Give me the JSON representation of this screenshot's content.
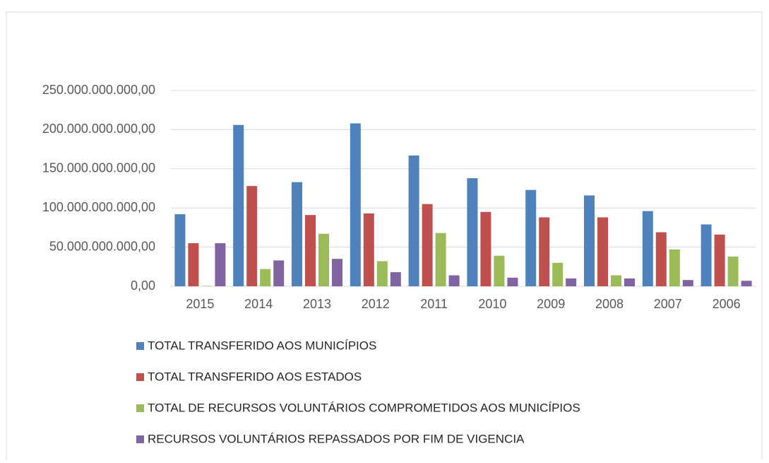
{
  "chart_data": {
    "type": "bar",
    "categories": [
      "2015",
      "2014",
      "2013",
      "2012",
      "2011",
      "2010",
      "2009",
      "2008",
      "2007",
      "2006"
    ],
    "series": [
      {
        "name": "TOTAL TRANSFERIDO AOS MUNICÍPIOS",
        "color": "#4f81bd",
        "values": [
          92000000000,
          206000000000,
          133000000000,
          208000000000,
          167000000000,
          138000000000,
          123000000000,
          116000000000,
          96000000000,
          79000000000
        ]
      },
      {
        "name": "TOTAL TRANSFERIDO AOS ESTADOS",
        "color": "#c0504d",
        "values": [
          55000000000,
          128000000000,
          91000000000,
          93000000000,
          105000000000,
          95000000000,
          88000000000,
          88000000000,
          69000000000,
          66000000000
        ]
      },
      {
        "name": "TOTAL DE RECURSOS VOLUNTÁRIOS COMPROMETIDOS AOS MUNICÍPIOS",
        "color": "#9bbb59",
        "values": [
          500000000,
          22000000000,
          67000000000,
          32000000000,
          68000000000,
          39000000000,
          30000000000,
          14000000000,
          47000000000,
          38000000000
        ]
      },
      {
        "name": "RECURSOS VOLUNTÁRIOS REPASSADOS POR FIM DE VIGENCIA",
        "color": "#8064a2",
        "values": [
          55000000000,
          33000000000,
          35000000000,
          18000000000,
          14000000000,
          11000000000,
          10000000000,
          10000000000,
          8000000000,
          7000000000
        ]
      }
    ],
    "ylim": [
      0,
      250000000000
    ],
    "yticks": [
      {
        "value": 0,
        "label": "0,00"
      },
      {
        "value": 50000000000,
        "label": "50.000.000.000,00"
      },
      {
        "value": 100000000000,
        "label": "100.000.000.000,00"
      },
      {
        "value": 150000000000,
        "label": "150.000.000.000,00"
      },
      {
        "value": 200000000000,
        "label": "200.000.000.000,00"
      },
      {
        "value": 250000000000,
        "label": "250.000.000.000,00"
      }
    ],
    "grid": true,
    "legend": "bottom"
  }
}
